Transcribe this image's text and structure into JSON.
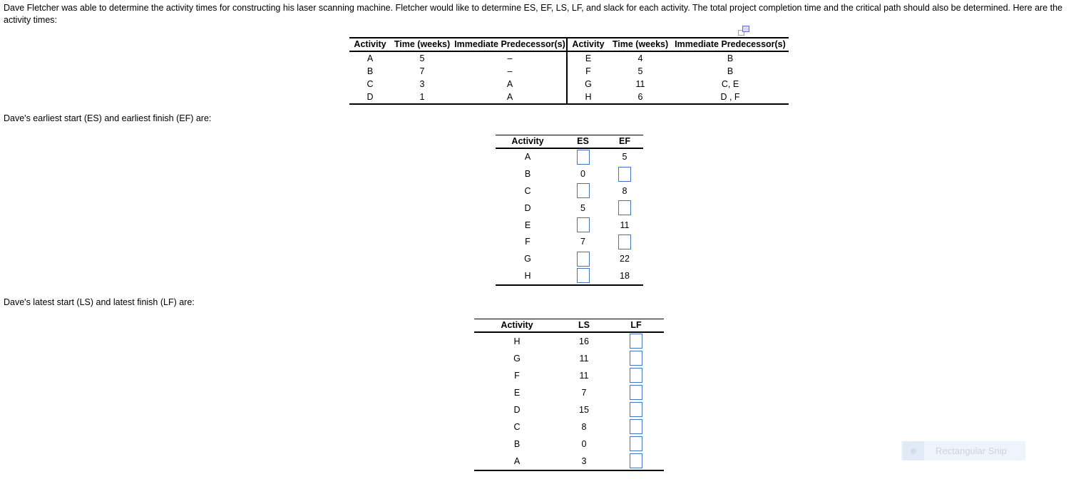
{
  "intro": {
    "line1": "Dave Fletcher was able to determine the activity times for constructing his laser scanning machine. Fletcher would like to determine ES, EF, LS, LF, and slack for each activity. The total project completion time and the critical path should also be determined. Here are the",
    "line2": "activity times:"
  },
  "captions": {
    "es_ef": "Dave's earliest start (ES) and earliest finish (EF) are:",
    "ls_lf": "Dave's latest start (LS) and latest finish (LF) are:"
  },
  "activity_table": {
    "headers": {
      "activity": "Activity",
      "time": "Time (weeks)",
      "predecessor": "Immediate Predecessor(s)"
    },
    "left_rows": [
      {
        "activity": "A",
        "time": "5",
        "pred": "–"
      },
      {
        "activity": "B",
        "time": "7",
        "pred": "–"
      },
      {
        "activity": "C",
        "time": "3",
        "pred": "A"
      },
      {
        "activity": "D",
        "time": "1",
        "pred": "A"
      }
    ],
    "right_rows": [
      {
        "activity": "E",
        "time": "4",
        "pred": "B"
      },
      {
        "activity": "F",
        "time": "5",
        "pred": "B"
      },
      {
        "activity": "G",
        "time": "11",
        "pred": "C, E"
      },
      {
        "activity": "H",
        "time": "6",
        "pred": "D , F"
      }
    ]
  },
  "es_ef_table": {
    "headers": {
      "activity": "Activity",
      "es": "ES",
      "ef": "EF"
    },
    "rows": [
      {
        "activity": "A",
        "es": null,
        "ef": "5"
      },
      {
        "activity": "B",
        "es": "0",
        "ef": null
      },
      {
        "activity": "C",
        "es": null,
        "ef": "8"
      },
      {
        "activity": "D",
        "es": "5",
        "ef": null
      },
      {
        "activity": "E",
        "es": null,
        "ef": "11"
      },
      {
        "activity": "F",
        "es": "7",
        "ef": null
      },
      {
        "activity": "G",
        "es": null,
        "ef": "22"
      },
      {
        "activity": "H",
        "es": null,
        "ef": "18"
      }
    ]
  },
  "ls_lf_table": {
    "headers": {
      "activity": "Activity",
      "ls": "LS",
      "lf": "LF"
    },
    "rows": [
      {
        "activity": "H",
        "ls": "16",
        "lf": null
      },
      {
        "activity": "G",
        "ls": "11",
        "lf": null
      },
      {
        "activity": "F",
        "ls": "11",
        "lf": null
      },
      {
        "activity": "E",
        "ls": "7",
        "lf": null
      },
      {
        "activity": "D",
        "ls": "15",
        "lf": null
      },
      {
        "activity": "C",
        "ls": "8",
        "lf": null
      },
      {
        "activity": "B",
        "ls": "0",
        "lf": null
      },
      {
        "activity": "A",
        "ls": "3",
        "lf": null
      }
    ]
  },
  "overlay": {
    "snip_label": "Rectangular Snip"
  },
  "colors": {
    "input_border": "#4472C4",
    "copy_icon": "#6E6EC0",
    "snip_bg": "#EAF2FA",
    "snip_text": "#CBD3DE"
  }
}
